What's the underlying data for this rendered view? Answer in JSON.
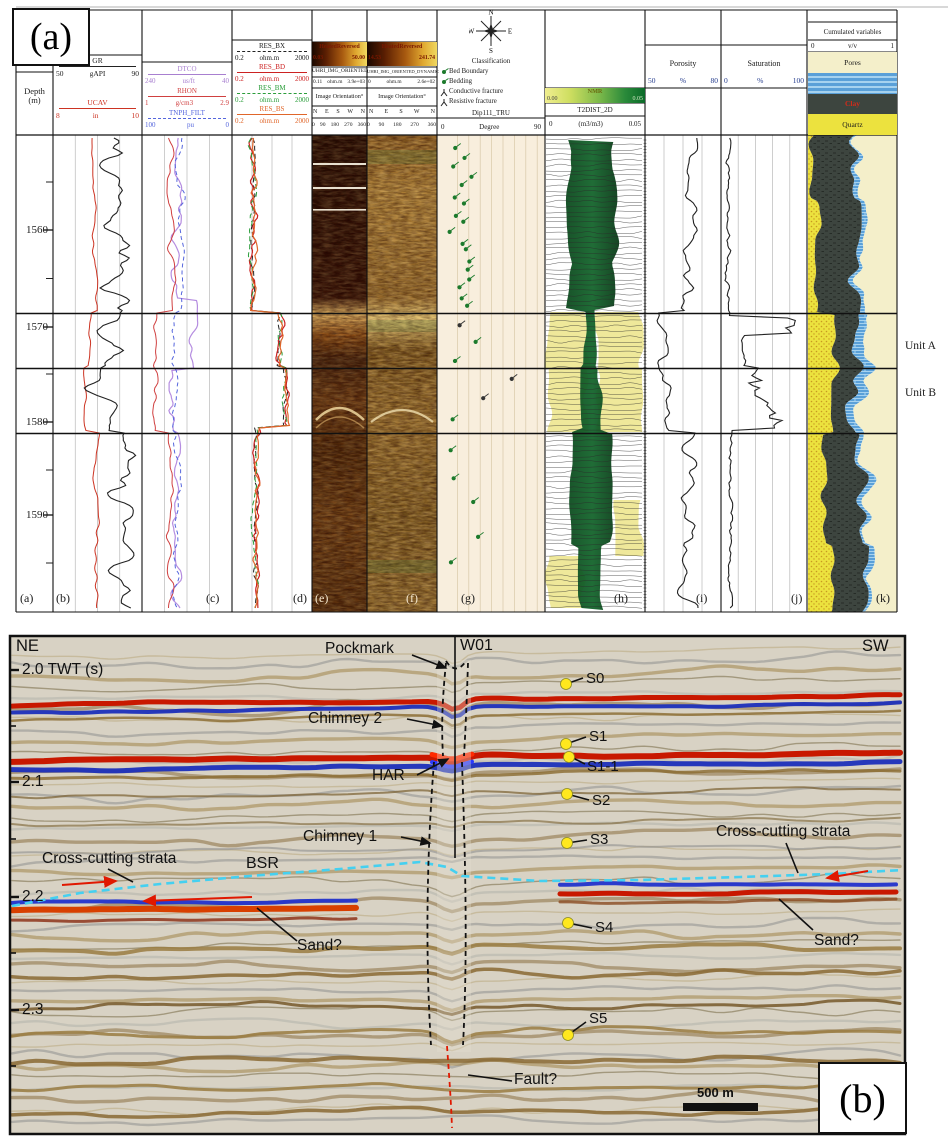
{
  "a": {
    "label": "(a)",
    "depth": {
      "l1": "Depth",
      "l2": "(m)",
      "t1": "1560",
      "t2": "1570",
      "t3": "1580",
      "t4": "1590",
      "label": "(a)"
    },
    "gr": {
      "label": "(b)",
      "c1": {
        "n": "GR",
        "l": "50",
        "u": "gAPI",
        "r": "90"
      },
      "c2": {
        "n": "UCAV",
        "l": "8",
        "u": "in",
        "r": "10"
      }
    },
    "son": {
      "label": "(c)",
      "c1": {
        "n": "DTCO",
        "l": "240",
        "u": "us/ft",
        "r": "40"
      },
      "c2": {
        "n": "RHON",
        "l": "1",
        "u": "g/cm3",
        "r": "2.9"
      },
      "c3": {
        "n": "TNPH_FILT",
        "l": "100",
        "u": "pu",
        "r": "0"
      }
    },
    "res": {
      "label": "(d)",
      "c1": {
        "n": "RES_BX",
        "l": "0.2",
        "u": "ohm.m",
        "r": "2000"
      },
      "c2": {
        "n": "RES_BD",
        "l": "0.2",
        "u": "ohm.m",
        "r": "2000"
      },
      "c3": {
        "n": "RES_BM",
        "l": "0.2",
        "u": "ohm.m",
        "r": "2000"
      },
      "c4": {
        "n": "RES_BS",
        "l": "0.2",
        "u": "ohm.m",
        "r": "2000"
      }
    },
    "fmis": {
      "label": "(e)",
      "cb": "HeatedReversed",
      "min": "0.03",
      "max": "50.00",
      "name": "UHRI_IMG_ORIENTED",
      "sl": "0.11",
      "su": "ohm.m",
      "sr": "3.9e+03",
      "ori": "Image Orientation°",
      "dirs": [
        "N",
        "E",
        "S",
        "W",
        "N"
      ],
      "deg": [
        "0",
        "90",
        "180",
        "270",
        "360"
      ]
    },
    "fmid": {
      "label": "(f)",
      "cb": "HeatedReversed",
      "min": "14.53",
      "max": "241.74",
      "name": "UHRI_IMG_ORIENTED_DYNAMIC",
      "sl": "0",
      "su": "ohm.m",
      "sr": "2.6e+02",
      "ori": "Image Orientation°",
      "dirs": [
        "N",
        "E",
        "S",
        "W",
        "N"
      ],
      "deg": [
        "0",
        "90",
        "180",
        "270",
        "360"
      ]
    },
    "dip": {
      "label": "(g)",
      "n": "N",
      "e": "E",
      "s": "S",
      "w": "W",
      "title": "Classification",
      "i1": "Bed Boundary",
      "i2": "Bedding",
      "i3": "Conductive fracture",
      "i4": "Resistive fracture",
      "name": "Dip111_TRU",
      "sl": "0",
      "su": "Degree",
      "sr": "90"
    },
    "nmr": {
      "label": "(h)",
      "cb": "NMR",
      "min": "0.00",
      "max": "0.05",
      "name": "T2DIST_2D",
      "sl": "0",
      "su": "(m3/m3)",
      "sr": "0.05"
    },
    "por": {
      "label": "(i)",
      "title": "Porosity",
      "sl": "50",
      "su": "%",
      "sr": "80"
    },
    "sat": {
      "label": "(j)",
      "title": "Saturation",
      "sl": "0",
      "su": "%",
      "sr": "100"
    },
    "cum": {
      "label": "(k)",
      "title": "Cumulated variables",
      "sl": "0",
      "su": "v/v",
      "sr": "1",
      "leg1": "Pores",
      "leg2": "Clay",
      "leg3": "Quartz"
    },
    "unitA": "Unit A",
    "unitB": "Unit B"
  },
  "b": {
    "label": "(b)",
    "ne": "NE",
    "sw": "SW",
    "well": "W01",
    "t20": "2.0 TWT (s)",
    "t21": "2.1",
    "t22": "2.2",
    "t23": "2.3",
    "pockmark": "Pockmark",
    "chimney2": "Chimney 2",
    "har": "HAR",
    "chimney1": "Chimney 1",
    "ccsL": "Cross-cutting strata",
    "bsr": "BSR",
    "ccsR": "Cross-cutting strata",
    "sandL": "Sand?",
    "sandR": "Sand?",
    "fault": "Fault?",
    "s0": "S0",
    "s1": "S1",
    "s11": "S1-1",
    "s2": "S2",
    "s3": "S3",
    "s4": "S4",
    "s5": "S5",
    "scalebar": "500 m"
  }
}
